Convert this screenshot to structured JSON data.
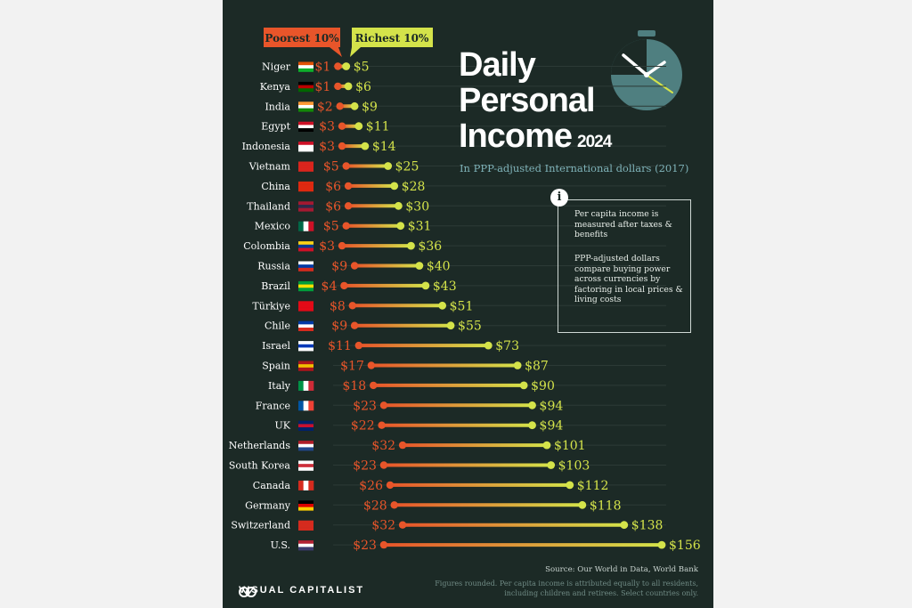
{
  "title": {
    "line1": "Daily",
    "line2": "Personal",
    "line3": "Income",
    "year": "2024"
  },
  "subtitle": "In PPP-adjusted International dollars (2017)",
  "info": {
    "p1": "Per capita income is measured after taxes & benefits",
    "p2": "PPP-adjusted dollars compare buying power across currencies by factoring in local prices & living costs"
  },
  "source": "Source: Our World in Data, World Bank",
  "footnote": "Figures rounded. Per capita income is attributed equally to all residents, including children and retirees. Select countries only.",
  "brand": "VISUAL CAPITALIST",
  "colors": {
    "background": "#1c2a26",
    "poorest": "#e8552a",
    "richest": "#d4e34a",
    "legend_text": "#1c2a26"
  },
  "chart_data": {
    "type": "dumbbell",
    "title": "Daily Personal Income 2024",
    "subtitle": "In PPP-adjusted International dollars (2017)",
    "legend": [
      "Poorest 10%",
      "Richest 10%"
    ],
    "value_prefix": "$",
    "xlim": [
      0,
      156
    ],
    "categories": [
      "Niger",
      "Kenya",
      "India",
      "Egypt",
      "Indonesia",
      "Vietnam",
      "China",
      "Thailand",
      "Mexico",
      "Colombia",
      "Russia",
      "Brazil",
      "Türkiye",
      "Chile",
      "Israel",
      "Spain",
      "Italy",
      "France",
      "UK",
      "Netherlands",
      "South Korea",
      "Canada",
      "Germany",
      "Switzerland",
      "U.S."
    ],
    "flags": [
      "niger-flag",
      "kenya-flag",
      "india-flag",
      "egypt-flag",
      "indonesia-flag",
      "vietnam-flag",
      "china-flag",
      "thailand-flag",
      "mexico-flag",
      "colombia-flag",
      "russia-flag",
      "brazil-flag",
      "turkiye-flag",
      "chile-flag",
      "israel-flag",
      "spain-flag",
      "italy-flag",
      "france-flag",
      "uk-flag",
      "netherlands-flag",
      "south-korea-flag",
      "canada-flag",
      "germany-flag",
      "switzerland-flag",
      "us-flag"
    ],
    "series": [
      {
        "name": "Poorest 10%",
        "values": [
          1,
          1,
          2,
          3,
          3,
          5,
          6,
          6,
          5,
          3,
          9,
          4,
          8,
          9,
          11,
          17,
          18,
          23,
          22,
          32,
          23,
          26,
          28,
          32,
          23
        ]
      },
      {
        "name": "Richest 10%",
        "values": [
          5,
          6,
          9,
          11,
          14,
          25,
          28,
          30,
          31,
          36,
          40,
          43,
          51,
          55,
          73,
          87,
          90,
          94,
          94,
          101,
          103,
          112,
          118,
          138,
          156
        ]
      }
    ]
  }
}
